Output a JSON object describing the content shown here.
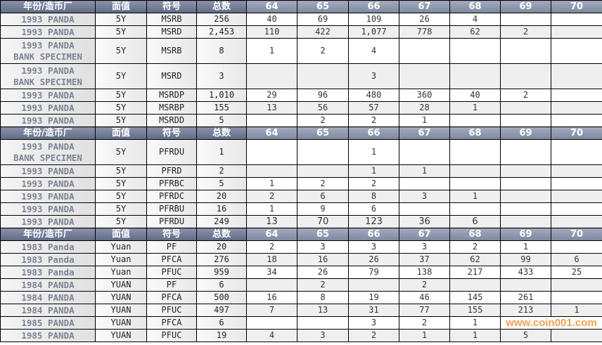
{
  "headers": [
    "年份/造币厂",
    "面值",
    "符号",
    "总数",
    "64",
    "65",
    "66",
    "67",
    "68",
    "69",
    "70"
  ],
  "sections": [
    {
      "rows": [
        {
          "name": [
            "1993 PANDA"
          ],
          "face": "5Y",
          "sym": "MSRB",
          "total": "256",
          "vals": [
            "40",
            "69",
            "109",
            "26",
            "4",
            "",
            ""
          ]
        },
        {
          "name": [
            "1993 PANDA"
          ],
          "face": "5Y",
          "sym": "MSRD",
          "total": "2,453",
          "vals": [
            "110",
            "422",
            "1,077",
            "778",
            "62",
            "2",
            ""
          ]
        },
        {
          "name": [
            "1993 PANDA",
            "BANK SPECIMEN"
          ],
          "face": "5Y",
          "sym": "MSRB",
          "total": "8",
          "vals": [
            "1",
            "2",
            "4",
            "",
            "",
            "",
            ""
          ]
        },
        {
          "name": [
            "1993 PANDA",
            "BANK SPECIMEN"
          ],
          "face": "5Y",
          "sym": "MSRD",
          "total": "3",
          "vals": [
            "",
            "",
            "3",
            "",
            "",
            "",
            ""
          ]
        },
        {
          "name": [
            "1993 PANDA"
          ],
          "face": "5Y",
          "sym": "MSRDP",
          "total": "1,010",
          "vals": [
            "29",
            "96",
            "480",
            "360",
            "40",
            "2",
            ""
          ]
        },
        {
          "name": [
            "1993 PANDA"
          ],
          "face": "5Y",
          "sym": "MSRBP",
          "total": "155",
          "vals": [
            "13",
            "56",
            "57",
            "28",
            "1",
            "",
            ""
          ]
        },
        {
          "name": [
            "1993 PANDA"
          ],
          "face": "5Y",
          "sym": "MSRDD",
          "total": "5",
          "vals": [
            "",
            "2",
            "2",
            "1",
            "",
            "",
            ""
          ]
        }
      ]
    },
    {
      "rows": [
        {
          "name": [
            "1993 PANDA",
            "BANK SPECIMEN"
          ],
          "face": "5Y",
          "sym": "PFRDU",
          "total": "1",
          "vals": [
            "",
            "",
            "1",
            "",
            "",
            "",
            ""
          ]
        },
        {
          "name": [
            "1993 PANDA"
          ],
          "face": "5Y",
          "sym": "PFRD",
          "total": "2",
          "vals": [
            "",
            "",
            "1",
            "1",
            "",
            "",
            ""
          ]
        },
        {
          "name": [
            "1993 PANDA"
          ],
          "face": "5Y",
          "sym": "PFRBC",
          "total": "5",
          "vals": [
            "1",
            "2",
            "2",
            "",
            "",
            "",
            ""
          ]
        },
        {
          "name": [
            "1993 PANDA"
          ],
          "face": "5Y",
          "sym": "PFRDC",
          "total": "20",
          "vals": [
            "2",
            "6",
            "8",
            "3",
            "1",
            "",
            ""
          ]
        },
        {
          "name": [
            "1993 PANDA"
          ],
          "face": "5Y",
          "sym": "PFRBU",
          "total": "16",
          "vals": [
            "1",
            "9",
            "6",
            "",
            "",
            "",
            ""
          ]
        },
        {
          "name": [
            "1993 PANDA"
          ],
          "face": "5Y",
          "sym": "PFRDU",
          "total": "249",
          "vals": [
            "13",
            "70",
            "123",
            "36",
            "6",
            "",
            ""
          ]
        }
      ]
    },
    {
      "rows": [
        {
          "name": [
            "1983 Panda"
          ],
          "face": "Yuan",
          "sym": "PF",
          "total": "20",
          "vals": [
            "2",
            "3",
            "3",
            "3",
            "2",
            "1",
            ""
          ]
        },
        {
          "name": [
            "1983 Panda"
          ],
          "face": "Yuan",
          "sym": "PFCA",
          "total": "276",
          "vals": [
            "18",
            "16",
            "26",
            "37",
            "62",
            "99",
            "6"
          ]
        },
        {
          "name": [
            "1983 Panda"
          ],
          "face": "Yuan",
          "sym": "PFUC",
          "total": "959",
          "vals": [
            "34",
            "26",
            "79",
            "138",
            "217",
            "433",
            "25"
          ]
        },
        {
          "name": [
            "1984 PANDA"
          ],
          "face": "YUAN",
          "sym": "PF",
          "total": "6",
          "vals": [
            "",
            "2",
            "",
            "2",
            "",
            "",
            ""
          ]
        },
        {
          "name": [
            "1984 PANDA"
          ],
          "face": "YUAN",
          "sym": "PFCA",
          "total": "500",
          "vals": [
            "16",
            "8",
            "19",
            "46",
            "145",
            "261",
            ""
          ]
        },
        {
          "name": [
            "1984 PANDA"
          ],
          "face": "YUAN",
          "sym": "PFUC",
          "total": "497",
          "vals": [
            "7",
            "13",
            "31",
            "77",
            "155",
            "213",
            "1"
          ]
        },
        {
          "name": [
            "1985 PANDA"
          ],
          "face": "YUAN",
          "sym": "PFCA",
          "total": "6",
          "vals": [
            "",
            "",
            "3",
            "2",
            "1",
            "",
            ""
          ]
        },
        {
          "name": [
            "1985 PANDA"
          ],
          "face": "YUAN",
          "sym": "PFUC",
          "total": "19",
          "vals": [
            "4",
            "3",
            "2",
            "1",
            "1",
            "5",
            ""
          ]
        }
      ]
    }
  ],
  "watermark": "www.coin001.com"
}
